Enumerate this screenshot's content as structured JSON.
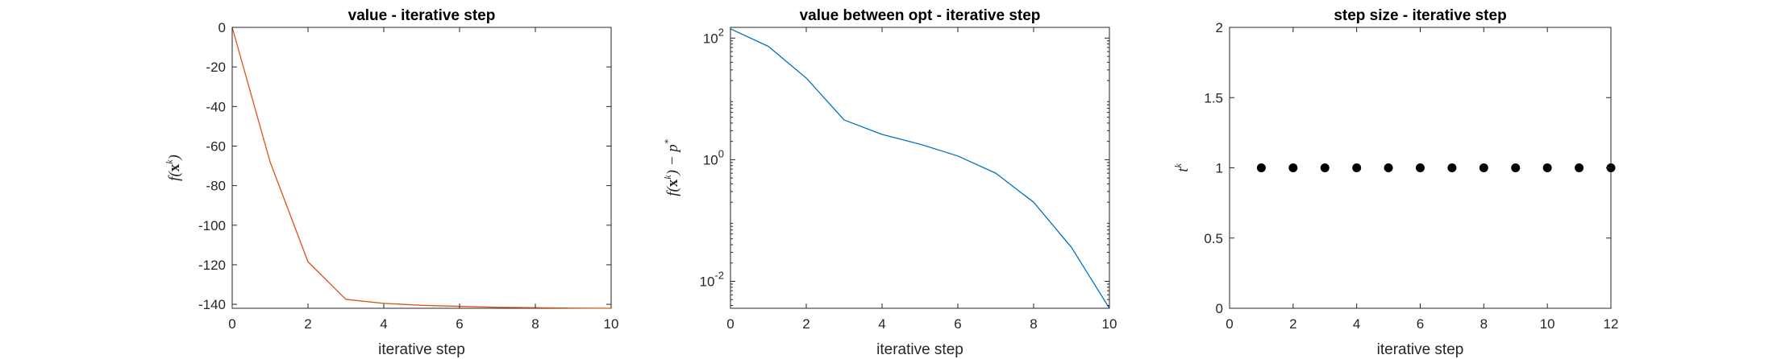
{
  "chart_data": [
    {
      "type": "line",
      "title": "value  - iterative step",
      "xlabel": "iterative step",
      "ylabel": "f(x^k)",
      "xlim": [
        0,
        10
      ],
      "ylim": [
        -142,
        0
      ],
      "xticks": [
        "0",
        "2",
        "4",
        "6",
        "8",
        "10"
      ],
      "yticks": [
        "0",
        "-20",
        "-40",
        "-60",
        "-80",
        "-100",
        "-120",
        "-140"
      ],
      "color": "#D95319",
      "grid": false,
      "x": [
        0,
        1,
        2,
        3,
        4,
        5,
        6,
        7,
        8,
        9,
        10
      ],
      "y": [
        0,
        -68,
        -118.5,
        -137.5,
        -139.5,
        -140.5,
        -141,
        -141.5,
        -141.7,
        -141.9,
        -142
      ]
    },
    {
      "type": "line",
      "title": "value between opt - iterative step",
      "xlabel": "iterative step",
      "ylabel": "f(x^k) − p*",
      "xlim": [
        0,
        10
      ],
      "ylim": [
        0.0036,
        150
      ],
      "yscale": "log",
      "xticks": [
        "0",
        "2",
        "4",
        "6",
        "8",
        "10"
      ],
      "yticks": [
        "10^2",
        "10^0",
        "10^-2"
      ],
      "color": "#0072BD",
      "grid": false,
      "x": [
        0,
        1,
        2,
        3,
        4,
        5,
        6,
        7,
        8,
        9,
        10
      ],
      "y": [
        142,
        73,
        22,
        4.5,
        2.6,
        1.8,
        1.15,
        0.6,
        0.2,
        0.036,
        0.0036
      ]
    },
    {
      "type": "scatter",
      "title": "step size - iterative step",
      "xlabel": "iterative step",
      "ylabel": "t^k",
      "xlim": [
        0,
        12
      ],
      "ylim": [
        0,
        2
      ],
      "xticks": [
        "0",
        "2",
        "4",
        "6",
        "8",
        "10",
        "12"
      ],
      "yticks": [
        "0",
        "0.5",
        "1",
        "1.5",
        "2"
      ],
      "color": "#000000",
      "grid": false,
      "x": [
        1,
        2,
        3,
        4,
        5,
        6,
        7,
        8,
        9,
        10,
        11,
        12
      ],
      "y": [
        1,
        1,
        1,
        1,
        1,
        1,
        1,
        1,
        1,
        1,
        1,
        1
      ]
    }
  ]
}
